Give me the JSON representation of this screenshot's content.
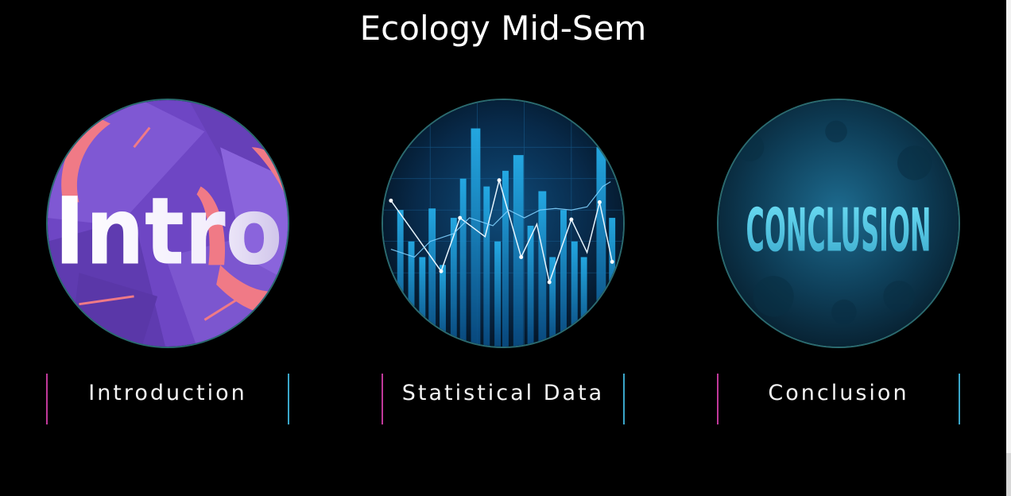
{
  "slide": {
    "title": "Ecology Mid-Sem"
  },
  "cards": [
    {
      "caption": "Introduction",
      "image_text": "Intro",
      "image_icon": "intro-artwork-image",
      "accent_colors": [
        "#7a52c9",
        "#f07a86",
        "#ffffff"
      ]
    },
    {
      "caption": "Statistical Data",
      "image_icon": "stock-chart-artwork-image",
      "accent_colors": [
        "#0b2a4a",
        "#1e9be0",
        "#ffffff"
      ]
    },
    {
      "caption": "Conclusion",
      "image_text": "CONCLUSION",
      "image_icon": "conclusion-artwork-image",
      "accent_colors": [
        "#0a2a3d",
        "#4fc7e6"
      ]
    }
  ],
  "colors": {
    "background": "#000000",
    "divider_left": "#c0399a",
    "divider_right": "#3aa6c9",
    "circle_border": "#2b6b70"
  }
}
